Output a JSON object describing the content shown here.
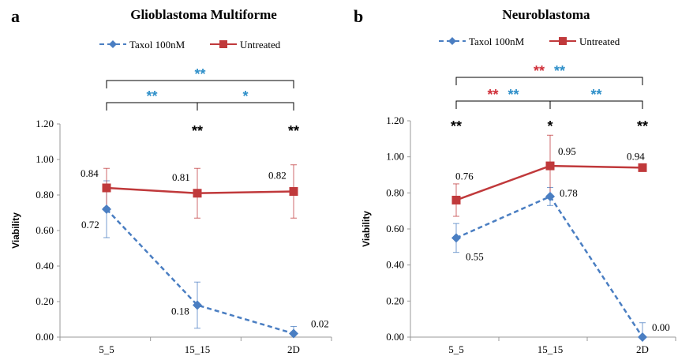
{
  "colors": {
    "taxol": "#4A7EC2",
    "untreated": "#C0393B",
    "red_star": "#D0303A",
    "blue_star": "#2E8FC9",
    "black": "#000000"
  },
  "chart_data": [
    {
      "panel": "a",
      "type": "line",
      "title": "Glioblastoma Multiforme",
      "ylabel": "Viability",
      "ylim": [
        0,
        1.2
      ],
      "yticks": [
        "0.00",
        "0.20",
        "0.40",
        "0.60",
        "0.80",
        "1.00",
        "1.20"
      ],
      "categories": [
        "5_5",
        "15_15",
        "2D"
      ],
      "series": [
        {
          "name": "Taxol 100nM",
          "values": [
            0.72,
            0.18,
            0.02
          ],
          "errors": [
            0.16,
            0.13,
            0.04
          ],
          "labels": [
            "0.72",
            "0.18",
            "0.02"
          ],
          "style": "dashed-diamond"
        },
        {
          "name": "Untreated",
          "values": [
            0.84,
            0.81,
            0.82
          ],
          "errors": [
            0.11,
            0.14,
            0.15
          ],
          "labels": [
            "0.84",
            "0.81",
            "0.82"
          ],
          "style": "solid-square"
        }
      ],
      "significance_above_points": [
        "",
        "**",
        "**"
      ],
      "brackets": [
        {
          "span": "5_5-2D",
          "marks": [
            {
              "text": "**",
              "color": "blue"
            }
          ]
        },
        {
          "span": "5_5-15_15",
          "marks": [
            {
              "text": "**",
              "color": "blue"
            }
          ]
        },
        {
          "span": "15_15-2D",
          "marks": [
            {
              "text": "*",
              "color": "blue"
            }
          ]
        }
      ]
    },
    {
      "panel": "b",
      "type": "line",
      "title": "Neuroblastoma",
      "ylabel": "Viability",
      "ylim": [
        0,
        1.2
      ],
      "yticks": [
        "0.00",
        "0.20",
        "0.40",
        "0.60",
        "0.80",
        "1.00",
        "1.20"
      ],
      "categories": [
        "5_5",
        "15_15",
        "2D"
      ],
      "series": [
        {
          "name": "Taxol 100nM",
          "values": [
            0.55,
            0.78,
            0.0
          ],
          "errors": [
            0.08,
            0.05,
            0.08
          ],
          "labels": [
            "0.55",
            "0.78",
            "0.00"
          ],
          "style": "dashed-diamond"
        },
        {
          "name": "Untreated",
          "values": [
            0.76,
            0.95,
            0.94
          ],
          "errors": [
            0.09,
            0.17,
            0.0
          ],
          "labels": [
            "0.76",
            "0.95",
            "0.94"
          ],
          "style": "solid-square"
        }
      ],
      "significance_above_points": [
        "**",
        "*",
        "**"
      ],
      "brackets": [
        {
          "span": "5_5-2D",
          "marks": [
            {
              "text": "**",
              "color": "red"
            },
            {
              "text": "**",
              "color": "blue"
            }
          ]
        },
        {
          "span": "5_5-15_15",
          "marks": [
            {
              "text": "**",
              "color": "red"
            },
            {
              "text": "**",
              "color": "blue"
            }
          ]
        },
        {
          "span": "15_15-2D",
          "marks": [
            {
              "text": "**",
              "color": "blue"
            }
          ]
        }
      ]
    }
  ]
}
